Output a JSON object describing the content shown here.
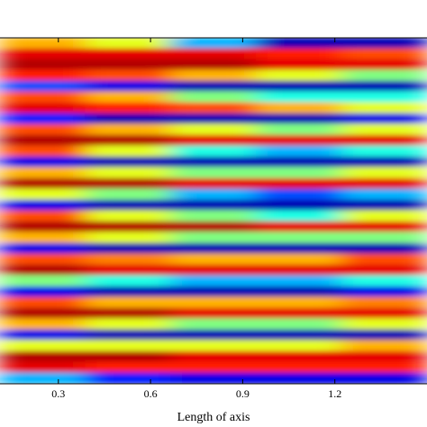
{
  "chart_data": {
    "type": "heatmap",
    "xlabel": "Length of axis",
    "xlim": [
      0.11,
      1.5
    ],
    "xticks": [
      0.3,
      0.6,
      0.9,
      1.2
    ],
    "zlim": [
      0,
      1
    ],
    "colormap": "jet",
    "z": [
      [
        0.7,
        0.6,
        0.3,
        0.05,
        0.05
      ],
      [
        0.9,
        0.9,
        0.9,
        0.85,
        0.8
      ],
      [
        0.95,
        0.95,
        0.95,
        0.9,
        0.9
      ],
      [
        0.85,
        0.8,
        0.7,
        0.6,
        0.5
      ],
      [
        0.2,
        0.1,
        0.05,
        0.05,
        0.05
      ],
      [
        0.8,
        0.7,
        0.5,
        0.4,
        0.4
      ],
      [
        0.9,
        0.85,
        0.8,
        0.7,
        0.6
      ],
      [
        0.15,
        0.05,
        0.05,
        0.05,
        0.1
      ],
      [
        0.8,
        0.7,
        0.6,
        0.5,
        0.6
      ],
      [
        0.95,
        0.95,
        0.9,
        0.9,
        0.9
      ],
      [
        0.8,
        0.6,
        0.4,
        0.3,
        0.4
      ],
      [
        0.1,
        0.05,
        0.05,
        0.05,
        0.05
      ],
      [
        0.7,
        0.6,
        0.5,
        0.5,
        0.6
      ],
      [
        0.95,
        0.95,
        0.9,
        0.9,
        0.9
      ],
      [
        0.6,
        0.5,
        0.3,
        0.2,
        0.3
      ],
      [
        0.1,
        0.05,
        0.05,
        0.05,
        0.05
      ],
      [
        0.8,
        0.6,
        0.5,
        0.4,
        0.6
      ],
      [
        0.95,
        0.95,
        0.95,
        0.9,
        0.9
      ],
      [
        0.7,
        0.6,
        0.5,
        0.5,
        0.5
      ],
      [
        0.1,
        0.05,
        0.05,
        0.05,
        0.05
      ],
      [
        0.8,
        0.75,
        0.7,
        0.7,
        0.8
      ],
      [
        0.95,
        0.9,
        0.9,
        0.9,
        0.9
      ],
      [
        0.5,
        0.4,
        0.3,
        0.3,
        0.4
      ],
      [
        0.1,
        0.05,
        0.05,
        0.05,
        0.1
      ],
      [
        0.8,
        0.7,
        0.7,
        0.7,
        0.75
      ],
      [
        0.95,
        0.95,
        0.9,
        0.9,
        0.9
      ],
      [
        0.7,
        0.6,
        0.5,
        0.5,
        0.6
      ],
      [
        0.1,
        0.05,
        0.05,
        0.05,
        0.05
      ],
      [
        0.6,
        0.6,
        0.6,
        0.6,
        0.7
      ],
      [
        0.95,
        0.95,
        0.9,
        0.9,
        0.9
      ],
      [
        0.9,
        0.85,
        0.85,
        0.85,
        0.85
      ],
      [
        0.3,
        0.15,
        0.1,
        0.1,
        0.1
      ]
    ]
  }
}
